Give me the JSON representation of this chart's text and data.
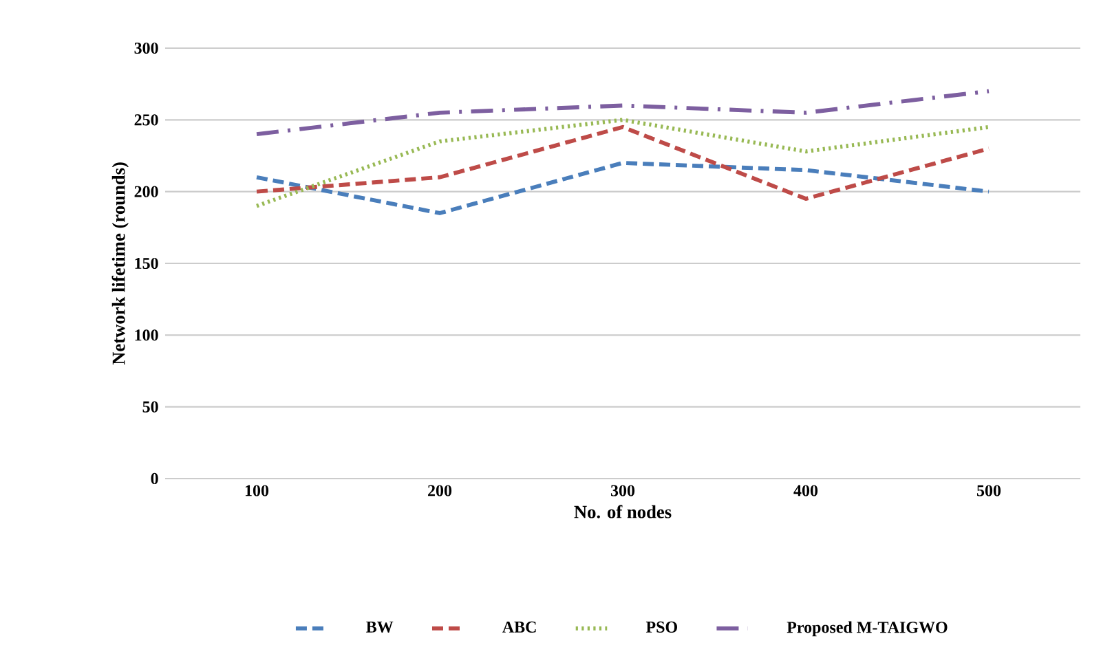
{
  "chart_data": {
    "type": "line",
    "xlabel": "No. of nodes",
    "ylabel": "Network lifetime (rounds)",
    "categories": [
      "100",
      "200",
      "300",
      "400",
      "500"
    ],
    "series": [
      {
        "name": "BW",
        "color": "#4a7ebb",
        "line_style": "dashed",
        "values": [
          210,
          185,
          220,
          215,
          200
        ]
      },
      {
        "name": "ABC",
        "color": "#be4b48",
        "line_style": "dashed",
        "values": [
          200,
          210,
          245,
          195,
          230
        ]
      },
      {
        "name": "PSO",
        "color": "#98b954",
        "line_style": "dotted",
        "values": [
          190,
          235,
          250,
          228,
          245
        ]
      },
      {
        "name": "Proposed M-TAIGWO",
        "color": "#7d5fa0",
        "line_style": "dashdotted",
        "values": [
          240,
          255,
          260,
          255,
          270
        ]
      }
    ],
    "ylim": [
      0,
      300
    ],
    "yticks": [
      0,
      50,
      100,
      150,
      200,
      250,
      300
    ],
    "grid": "y",
    "legend": "bottom",
    "marker": "none"
  }
}
